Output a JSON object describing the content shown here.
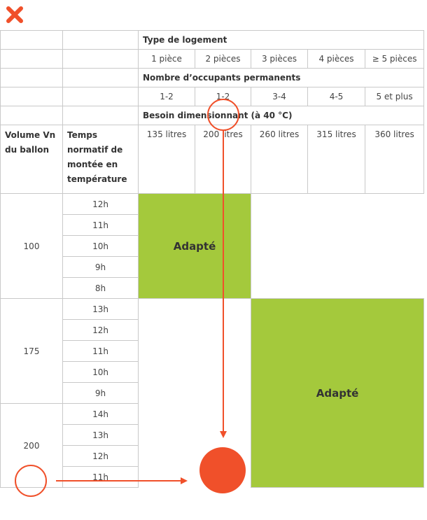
{
  "headers": {
    "type_logement": "Type de logement",
    "nombre_occupants": "Nombre d’occupants permanents",
    "besoin": "Besoin dimensionnant (à 40 °C)"
  },
  "pieces": [
    "1 pièce",
    "2 pièces",
    "3 pièces",
    "4 pièces",
    "≥ 5 pièces"
  ],
  "occupants": [
    "1-2",
    "1-2",
    "3-4",
    "4-5",
    "5 et plus"
  ],
  "besoins": [
    "135 litres",
    "200 litres",
    "260 litres",
    "315 litres",
    "360 litres"
  ],
  "col_labels": {
    "volume": "Volume Vn du ballon",
    "temps": "Temps normatif de montée en température"
  },
  "groups": [
    {
      "volume": "100",
      "hours": [
        "12h",
        "11h",
        "10h",
        "9h",
        "8h"
      ]
    },
    {
      "volume": "175",
      "hours": [
        "13h",
        "12h",
        "11h",
        "10h",
        "9h"
      ]
    },
    {
      "volume": "200",
      "hours": [
        "14h",
        "13h",
        "12h",
        "11h"
      ]
    }
  ],
  "adapte_label_1": "Adapté",
  "adapte_label_2": "Adapté",
  "colors": {
    "accent": "#f0502a",
    "green": "#a4c93c"
  },
  "icons": {
    "close": "close-icon"
  }
}
